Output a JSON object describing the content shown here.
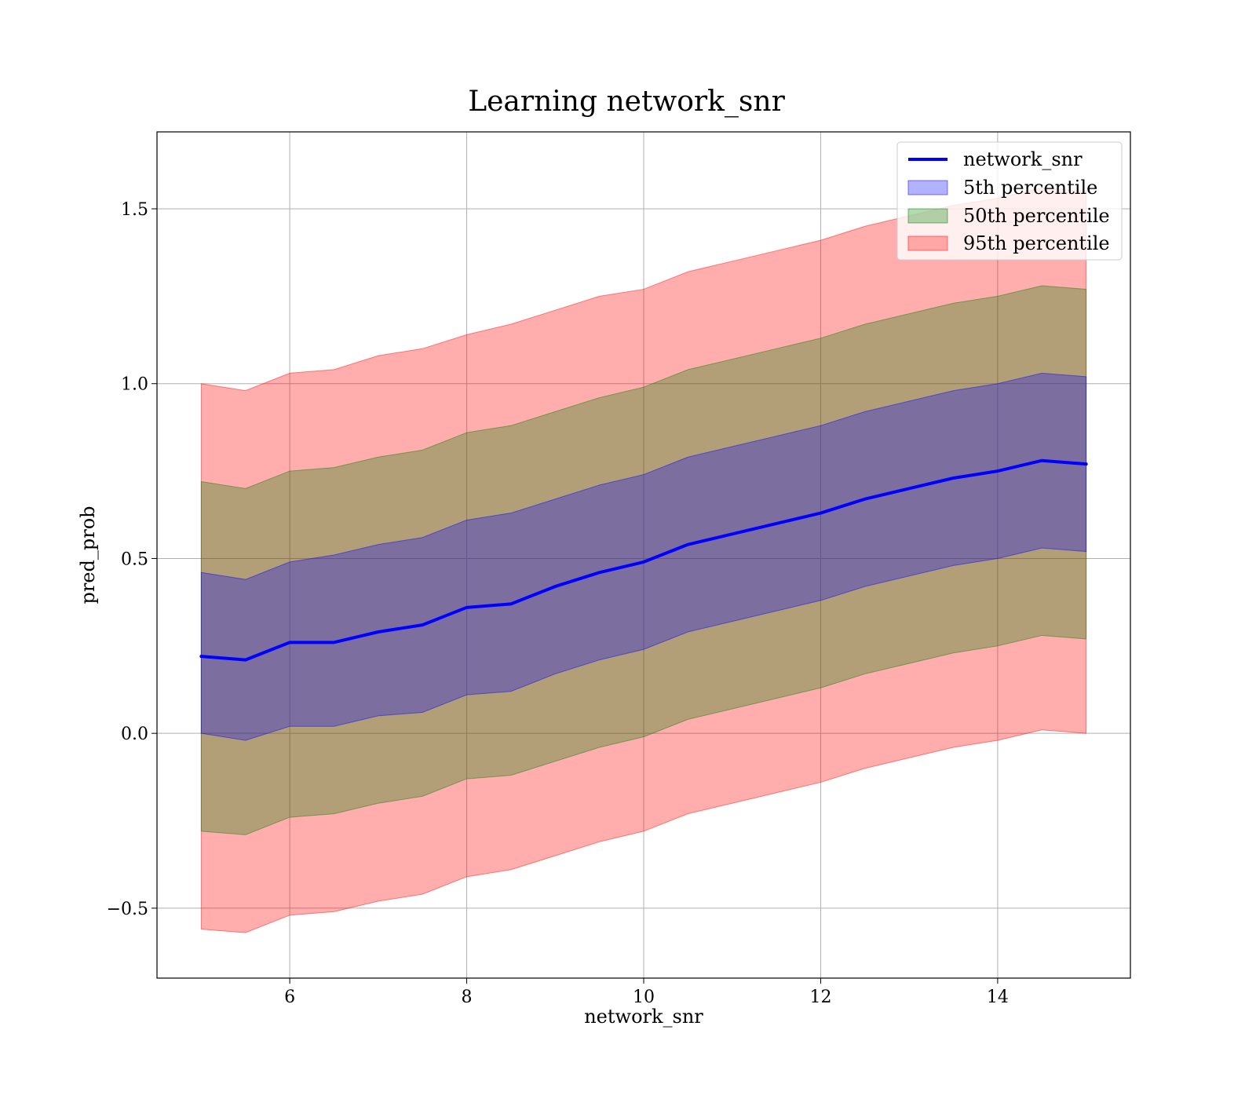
{
  "chart_data": {
    "type": "line",
    "title": "Learning network_snr",
    "xlabel": "network_snr",
    "ylabel": "pred_prob",
    "xlim": [
      4.5,
      15.5
    ],
    "ylim": [
      -0.7,
      1.72
    ],
    "xticks": [
      6,
      8,
      10,
      12,
      14
    ],
    "xtick_labels": [
      "6",
      "8",
      "10",
      "12",
      "14"
    ],
    "yticks": [
      -0.5,
      0.0,
      0.5,
      1.0,
      1.5
    ],
    "ytick_labels": [
      "−0.5",
      "0.0",
      "0.5",
      "1.0",
      "1.5"
    ],
    "grid": true,
    "legend_position": "top-right",
    "x": [
      5.0,
      5.5,
      6.0,
      6.5,
      7.0,
      7.5,
      8.0,
      8.5,
      9.0,
      9.5,
      10.0,
      10.5,
      11.0,
      11.5,
      12.0,
      12.5,
      13.0,
      13.5,
      14.0,
      14.5,
      15.0
    ],
    "series": [
      {
        "name": "network_snr",
        "kind": "line",
        "color": "#0000ff",
        "values": [
          0.22,
          0.21,
          0.26,
          0.26,
          0.29,
          0.31,
          0.36,
          0.37,
          0.42,
          0.46,
          0.49,
          0.54,
          0.57,
          0.6,
          0.63,
          0.67,
          0.7,
          0.73,
          0.75,
          0.78,
          0.77
        ]
      },
      {
        "name": "5th percentile",
        "kind": "band",
        "color": "#0000ff",
        "upper": [
          0.46,
          0.44,
          0.49,
          0.51,
          0.54,
          0.56,
          0.61,
          0.63,
          0.67,
          0.71,
          0.74,
          0.79,
          0.82,
          0.85,
          0.88,
          0.92,
          0.95,
          0.98,
          1.0,
          1.03,
          1.02
        ],
        "lower": [
          0.0,
          -0.02,
          0.02,
          0.02,
          0.05,
          0.06,
          0.11,
          0.12,
          0.17,
          0.21,
          0.24,
          0.29,
          0.32,
          0.35,
          0.38,
          0.42,
          0.45,
          0.48,
          0.5,
          0.53,
          0.52
        ]
      },
      {
        "name": "50th percentile",
        "kind": "band",
        "color": "#008000",
        "upper": [
          0.72,
          0.7,
          0.75,
          0.76,
          0.79,
          0.81,
          0.86,
          0.88,
          0.92,
          0.96,
          0.99,
          1.04,
          1.07,
          1.1,
          1.13,
          1.17,
          1.2,
          1.23,
          1.25,
          1.28,
          1.27
        ],
        "lower": [
          -0.28,
          -0.29,
          -0.24,
          -0.23,
          -0.2,
          -0.18,
          -0.13,
          -0.12,
          -0.08,
          -0.04,
          -0.01,
          0.04,
          0.07,
          0.1,
          0.13,
          0.17,
          0.2,
          0.23,
          0.25,
          0.28,
          0.27
        ]
      },
      {
        "name": "95th percentile",
        "kind": "band",
        "color": "#ff0000",
        "upper": [
          1.0,
          0.98,
          1.03,
          1.04,
          1.08,
          1.1,
          1.14,
          1.17,
          1.21,
          1.25,
          1.27,
          1.32,
          1.35,
          1.38,
          1.41,
          1.45,
          1.48,
          1.51,
          1.53,
          1.56,
          1.55
        ],
        "lower": [
          -0.56,
          -0.57,
          -0.52,
          -0.51,
          -0.48,
          -0.46,
          -0.41,
          -0.39,
          -0.35,
          -0.31,
          -0.28,
          -0.23,
          -0.2,
          -0.17,
          -0.14,
          -0.1,
          -0.07,
          -0.04,
          -0.02,
          0.01,
          0.0
        ]
      }
    ]
  }
}
